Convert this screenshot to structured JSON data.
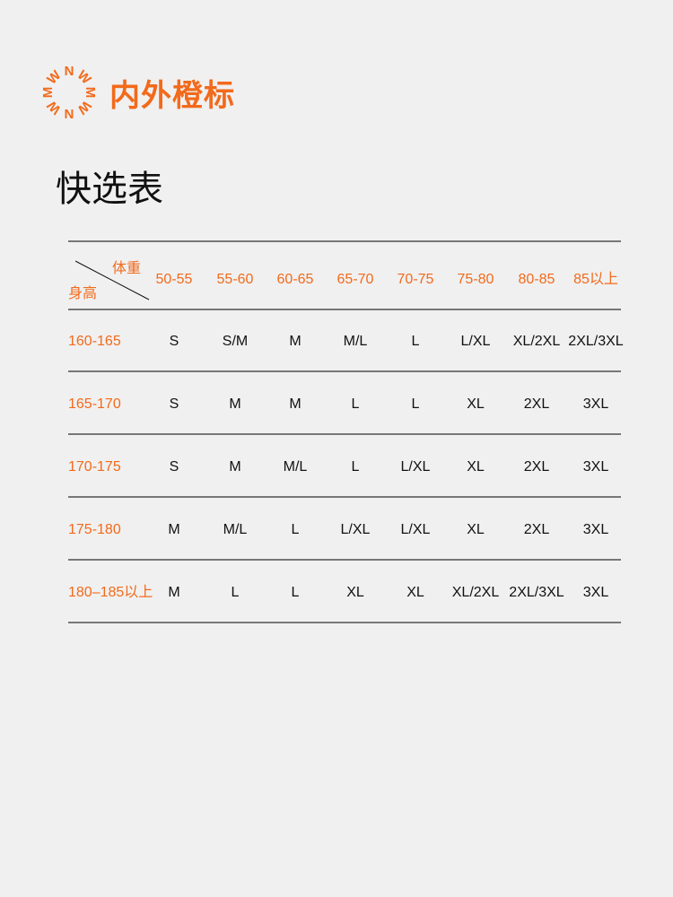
{
  "brand": {
    "name": "内外橙标",
    "color": "#f26a1b",
    "logo_letters": "NWMWNWMW"
  },
  "title": "快选表",
  "table": {
    "corner_weight": "体重",
    "corner_height": "身高",
    "columns": [
      "50-55",
      "55-60",
      "60-65",
      "65-70",
      "70-75",
      "75-80",
      "80-85",
      "85以上"
    ],
    "rows": [
      {
        "label": "160-165",
        "values": [
          "S",
          "S/M",
          "M",
          "M/L",
          "L",
          "L/XL",
          "XL/2XL",
          "2XL/3XL"
        ]
      },
      {
        "label": "165-170",
        "values": [
          "S",
          "M",
          "M",
          "L",
          "L",
          "XL",
          "2XL",
          "3XL"
        ]
      },
      {
        "label": "170-175",
        "values": [
          "S",
          "M",
          "M/L",
          "L",
          "L/XL",
          "XL",
          "2XL",
          "3XL"
        ]
      },
      {
        "label": "175-180",
        "values": [
          "M",
          "M/L",
          "L",
          "L/XL",
          "L/XL",
          "XL",
          "2XL",
          "3XL"
        ]
      },
      {
        "label": "180–185以上",
        "values": [
          "M",
          "L",
          "L",
          "XL",
          "XL",
          "XL/2XL",
          "2XL/3XL",
          "3XL"
        ]
      }
    ]
  }
}
